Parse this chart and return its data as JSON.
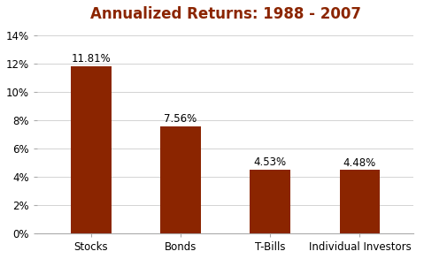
{
  "title": "Annualized Returns: 1988 - 2007",
  "categories": [
    "Stocks",
    "Bonds",
    "T-Bills",
    "Individual Investors"
  ],
  "values": [
    11.81,
    7.56,
    4.53,
    4.48
  ],
  "labels": [
    "11.81%",
    "7.56%",
    "4.53%",
    "4.48%"
  ],
  "bar_color": "#8B2500",
  "title_color": "#8B2500",
  "ytick_values": [
    0,
    2,
    4,
    6,
    8,
    10,
    12,
    14
  ],
  "ylim": [
    0,
    14.5
  ],
  "background_color": "#ffffff",
  "title_fontsize": 12,
  "label_fontsize": 8.5,
  "tick_fontsize": 8.5,
  "bar_width": 0.45,
  "grid_color": "#cccccc",
  "spine_color": "#aaaaaa"
}
